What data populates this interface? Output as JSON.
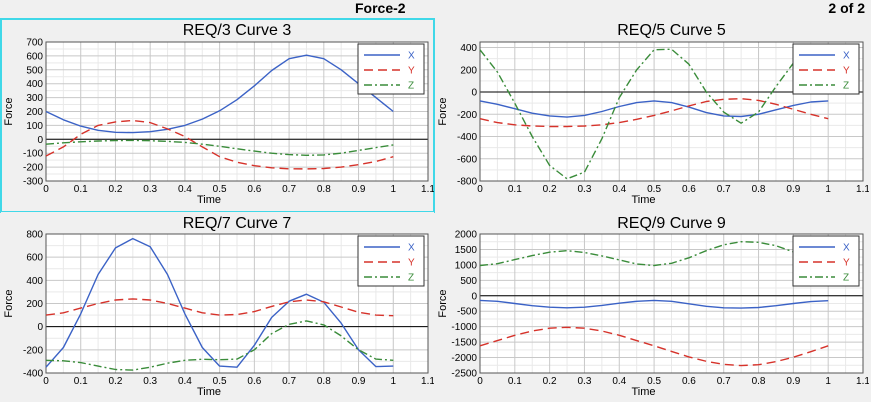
{
  "window": {
    "title": "Force-2",
    "page_indicator": "2 of 2"
  },
  "colors": {
    "X": "#3b62c6",
    "Y": "#d6322a",
    "Z": "#3a8c3a"
  },
  "chart_data": [
    {
      "type": "line",
      "title": "REQ/3 Curve 3",
      "xlabel": "Time",
      "ylabel": "Force",
      "xlim": [
        0,
        1.1
      ],
      "ylim": [
        -300,
        700
      ],
      "xticks": [
        0,
        0.1,
        0.2,
        0.3,
        0.4,
        0.5,
        0.6,
        0.7,
        0.8,
        0.9,
        1,
        1.1
      ],
      "xtick_labels": [
        "0",
        "0.1",
        "0.2",
        "0.3",
        "0.4",
        "0.5",
        "0.6",
        "0.7",
        "0.8",
        "0.9",
        "1",
        "1.1"
      ],
      "yticks": [
        -300,
        -200,
        -100,
        0,
        100,
        200,
        300,
        400,
        500,
        600,
        700
      ],
      "ytick_labels": [
        "-300",
        "-200",
        "-100",
        "0",
        "100",
        "200",
        "300",
        "400",
        "500",
        "600",
        "700"
      ],
      "legend": "top-right",
      "grid": true,
      "selected": true,
      "x": [
        0,
        0.05,
        0.1,
        0.15,
        0.2,
        0.25,
        0.3,
        0.35,
        0.4,
        0.45,
        0.5,
        0.55,
        0.6,
        0.65,
        0.7,
        0.75,
        0.8,
        0.85,
        0.9,
        0.95,
        1
      ],
      "series": [
        {
          "name": "X",
          "style": "solid",
          "values": [
            200,
            140,
            95,
            65,
            50,
            48,
            55,
            72,
            100,
            145,
            205,
            285,
            385,
            495,
            580,
            605,
            580,
            500,
            400,
            300,
            200
          ]
        },
        {
          "name": "Y",
          "style": "dash",
          "values": [
            -120,
            -55,
            35,
            100,
            125,
            135,
            120,
            75,
            20,
            -55,
            -125,
            -165,
            -190,
            -205,
            -212,
            -213,
            -210,
            -200,
            -182,
            -160,
            -125
          ]
        },
        {
          "name": "Z",
          "style": "dashdot",
          "values": [
            -35,
            -25,
            -18,
            -12,
            -9,
            -8,
            -10,
            -15,
            -22,
            -35,
            -50,
            -68,
            -85,
            -100,
            -110,
            -115,
            -112,
            -100,
            -80,
            -60,
            -40
          ]
        }
      ]
    },
    {
      "type": "line",
      "title": "REQ/5 Curve 5",
      "xlabel": "Time",
      "ylabel": "Force",
      "xlim": [
        0,
        1.1
      ],
      "ylim": [
        -800,
        450
      ],
      "xticks": [
        0,
        0.1,
        0.2,
        0.3,
        0.4,
        0.5,
        0.6,
        0.7,
        0.8,
        0.9,
        1,
        1.1
      ],
      "xtick_labels": [
        "0",
        "0.1",
        "0.2",
        "0.3",
        "0.4",
        "0.5",
        "0.6",
        "0.7",
        "0.8",
        "0.9",
        "1",
        "1.1"
      ],
      "yticks": [
        -800,
        -600,
        -400,
        -200,
        0,
        200,
        400
      ],
      "ytick_labels": [
        "-800",
        "-600",
        "-400",
        "-200",
        "0",
        "200",
        "400"
      ],
      "legend": "top-right",
      "grid": true,
      "selected": false,
      "x": [
        0,
        0.05,
        0.1,
        0.15,
        0.2,
        0.25,
        0.3,
        0.35,
        0.4,
        0.45,
        0.5,
        0.55,
        0.6,
        0.65,
        0.7,
        0.75,
        0.8,
        0.85,
        0.9,
        0.95,
        1
      ],
      "series": [
        {
          "name": "X",
          "style": "solid",
          "values": [
            -80,
            -110,
            -150,
            -190,
            -215,
            -225,
            -210,
            -175,
            -130,
            -95,
            -80,
            -95,
            -135,
            -185,
            -215,
            -220,
            -200,
            -160,
            -120,
            -90,
            -80
          ]
        },
        {
          "name": "Y",
          "style": "dash",
          "values": [
            -240,
            -275,
            -295,
            -305,
            -310,
            -310,
            -305,
            -295,
            -275,
            -245,
            -210,
            -170,
            -125,
            -85,
            -65,
            -60,
            -75,
            -110,
            -155,
            -200,
            -240
          ]
        },
        {
          "name": "Z",
          "style": "dashdot",
          "values": [
            380,
            180,
            -100,
            -400,
            -660,
            -780,
            -720,
            -420,
            -50,
            200,
            380,
            385,
            250,
            0,
            -180,
            -280,
            -180,
            50,
            260,
            360,
            380
          ]
        }
      ]
    },
    {
      "type": "line",
      "title": "REQ/7 Curve 7",
      "xlabel": "Time",
      "ylabel": "Force",
      "xlim": [
        0,
        1.1
      ],
      "ylim": [
        -400,
        800
      ],
      "xticks": [
        0,
        0.1,
        0.2,
        0.3,
        0.4,
        0.5,
        0.6,
        0.7,
        0.8,
        0.9,
        1,
        1.1
      ],
      "xtick_labels": [
        "0",
        "0.1",
        "0.2",
        "0.3",
        "0.4",
        "0.5",
        "0.6",
        "0.7",
        "0.8",
        "0.9",
        "1",
        "1.1"
      ],
      "yticks": [
        -400,
        -200,
        0,
        200,
        400,
        600,
        800
      ],
      "ytick_labels": [
        "-400",
        "-200",
        "0",
        "200",
        "400",
        "600",
        "800"
      ],
      "legend": "top-right",
      "grid": true,
      "selected": false,
      "x": [
        0,
        0.05,
        0.1,
        0.15,
        0.2,
        0.25,
        0.3,
        0.35,
        0.4,
        0.45,
        0.5,
        0.55,
        0.6,
        0.65,
        0.7,
        0.75,
        0.8,
        0.85,
        0.9,
        0.95,
        1
      ],
      "series": [
        {
          "name": "X",
          "style": "solid",
          "values": [
            -350,
            -180,
            110,
            450,
            680,
            760,
            690,
            450,
            110,
            -180,
            -340,
            -350,
            -160,
            80,
            220,
            280,
            210,
            30,
            -200,
            -345,
            -340
          ]
        },
        {
          "name": "Y",
          "style": "dash",
          "values": [
            100,
            120,
            160,
            200,
            230,
            240,
            230,
            200,
            160,
            120,
            100,
            105,
            130,
            175,
            215,
            230,
            215,
            170,
            125,
            100,
            95
          ]
        },
        {
          "name": "Z",
          "style": "dashdot",
          "values": [
            -290,
            -295,
            -310,
            -340,
            -370,
            -375,
            -350,
            -315,
            -290,
            -282,
            -285,
            -280,
            -200,
            -60,
            20,
            50,
            15,
            -80,
            -200,
            -280,
            -290
          ]
        }
      ]
    },
    {
      "type": "line",
      "title": "REQ/9 Curve 9",
      "xlabel": "Time",
      "ylabel": "Force",
      "xlim": [
        0,
        1.1
      ],
      "ylim": [
        -2500,
        2000
      ],
      "xticks": [
        0,
        0.1,
        0.2,
        0.3,
        0.4,
        0.5,
        0.6,
        0.7,
        0.8,
        0.9,
        1,
        1.1
      ],
      "xtick_labels": [
        "0",
        "0.1",
        "0.2",
        "0.3",
        "0.4",
        "0.5",
        "0.6",
        "0.7",
        "0.8",
        "0.9",
        "1",
        "1.1"
      ],
      "yticks": [
        -2500,
        -2000,
        -1500,
        -1000,
        -500,
        0,
        500,
        1000,
        1500,
        2000
      ],
      "ytick_labels": [
        "-2500",
        "-2000",
        "-1500",
        "-1000",
        "-500",
        "0",
        "500",
        "1000",
        "1500",
        "2000"
      ],
      "legend": "top-right",
      "grid": true,
      "selected": false,
      "x": [
        0,
        0.05,
        0.1,
        0.15,
        0.2,
        0.25,
        0.3,
        0.35,
        0.4,
        0.45,
        0.5,
        0.55,
        0.6,
        0.65,
        0.7,
        0.75,
        0.8,
        0.85,
        0.9,
        0.95,
        1
      ],
      "series": [
        {
          "name": "X",
          "style": "solid",
          "values": [
            -150,
            -180,
            -250,
            -320,
            -370,
            -390,
            -370,
            -310,
            -240,
            -180,
            -150,
            -180,
            -260,
            -340,
            -390,
            -400,
            -380,
            -320,
            -250,
            -190,
            -160
          ]
        },
        {
          "name": "Y",
          "style": "dash",
          "values": [
            -1620,
            -1450,
            -1280,
            -1140,
            -1050,
            -1020,
            -1050,
            -1140,
            -1280,
            -1450,
            -1620,
            -1800,
            -1980,
            -2120,
            -2220,
            -2260,
            -2230,
            -2130,
            -1990,
            -1810,
            -1620
          ]
        },
        {
          "name": "Z",
          "style": "dashdot",
          "values": [
            980,
            1040,
            1170,
            1300,
            1410,
            1460,
            1400,
            1290,
            1160,
            1030,
            980,
            1050,
            1230,
            1460,
            1650,
            1750,
            1730,
            1620,
            1420,
            1210,
            1010
          ]
        }
      ]
    }
  ]
}
